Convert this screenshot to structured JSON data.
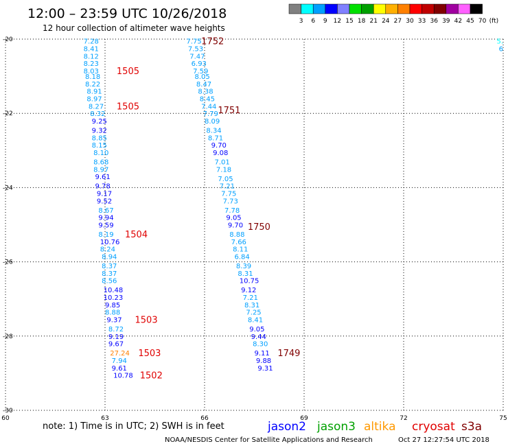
{
  "header": {
    "title": "12:00 – 23:59 UTC 10/26/2018",
    "subtitle": "12 hour collection of altimeter wave heights"
  },
  "colorbar": {
    "labels": [
      "3",
      "6",
      "9",
      "12",
      "15",
      "18",
      "21",
      "24",
      "27",
      "30",
      "33",
      "36",
      "39",
      "42",
      "45",
      "70"
    ],
    "unit": "(ft)",
    "colors": [
      "#808080",
      "#00ffff",
      "#00a0ff",
      "#0000ff",
      "#8080ff",
      "#00e000",
      "#00a000",
      "#ffff00",
      "#ffb000",
      "#ff8000",
      "#ff0000",
      "#c00000",
      "#800000",
      "#a000a0",
      "#ff60ff",
      "#000000"
    ]
  },
  "footer": {
    "note": "note:  1) Time is in UTC;  2) SWH is in feet",
    "credit": "NOAA/NESDIS Center for Satellite Applications and Research",
    "timestamp": "Oct 27 12:27:54 UTC 2018"
  },
  "legend": [
    {
      "name": "jason2",
      "color": "#0000ff"
    },
    {
      "name": "jason3",
      "color": "#00a000"
    },
    {
      "name": "altika",
      "color": "#ff9900"
    },
    {
      "name": "cryosat",
      "color": "#e00000"
    },
    {
      "name": "s3a",
      "color": "#800000"
    }
  ],
  "chart_data": {
    "type": "scatter",
    "xlim": [
      60,
      75
    ],
    "ylim": [
      -30,
      -20
    ],
    "xticks": [
      "60",
      "63",
      "66",
      "69",
      "72",
      "75"
    ],
    "yticks": [
      "-20",
      "-22",
      "-24",
      "-26",
      "-28",
      "-30"
    ],
    "grid": true,
    "swh_color_thresholds": [
      3,
      6,
      9,
      12,
      15,
      18,
      21,
      24,
      27,
      30,
      33,
      36,
      39,
      42,
      45,
      70
    ],
    "series": [
      {
        "track": "left",
        "points": [
          {
            "x": 62.35,
            "y": -20.05,
            "v": "7.28"
          },
          {
            "x": 62.35,
            "y": -20.25,
            "v": "8.41"
          },
          {
            "x": 62.35,
            "y": -20.45,
            "v": "8.12"
          },
          {
            "x": 62.35,
            "y": -20.65,
            "v": "8.23"
          },
          {
            "x": 62.35,
            "y": -20.85,
            "v": "8.03"
          },
          {
            "x": 62.4,
            "y": -21.0,
            "v": "8.18"
          },
          {
            "x": 62.4,
            "y": -21.2,
            "v": "8.22"
          },
          {
            "x": 62.45,
            "y": -21.4,
            "v": "8.91"
          },
          {
            "x": 62.45,
            "y": -21.6,
            "v": "8.97"
          },
          {
            "x": 62.5,
            "y": -21.8,
            "v": "8.27"
          },
          {
            "x": 62.55,
            "y": -22.0,
            "v": "8.32"
          },
          {
            "x": 62.6,
            "y": -22.2,
            "v": "9.25"
          },
          {
            "x": 62.6,
            "y": -22.45,
            "v": "9.32"
          },
          {
            "x": 62.6,
            "y": -22.65,
            "v": "8.85"
          },
          {
            "x": 62.6,
            "y": -22.85,
            "v": "8.15"
          },
          {
            "x": 62.65,
            "y": -23.05,
            "v": "8.10"
          },
          {
            "x": 62.65,
            "y": -23.3,
            "v": "8.68"
          },
          {
            "x": 62.65,
            "y": -23.5,
            "v": "8.97"
          },
          {
            "x": 62.7,
            "y": -23.7,
            "v": "9.61"
          },
          {
            "x": 62.7,
            "y": -23.95,
            "v": "9.78"
          },
          {
            "x": 62.75,
            "y": -24.15,
            "v": "9.17"
          },
          {
            "x": 62.75,
            "y": -24.35,
            "v": "9.52"
          },
          {
            "x": 62.8,
            "y": -24.6,
            "v": "8.67"
          },
          {
            "x": 62.8,
            "y": -24.8,
            "v": "9.94"
          },
          {
            "x": 62.8,
            "y": -25.0,
            "v": "9.59"
          },
          {
            "x": 62.8,
            "y": -25.25,
            "v": "8.19"
          },
          {
            "x": 62.85,
            "y": -25.45,
            "v": "10.76"
          },
          {
            "x": 62.85,
            "y": -25.65,
            "v": "8.24"
          },
          {
            "x": 62.9,
            "y": -25.85,
            "v": "8.94"
          },
          {
            "x": 62.9,
            "y": -26.1,
            "v": "8.37"
          },
          {
            "x": 62.9,
            "y": -26.3,
            "v": "8.37"
          },
          {
            "x": 62.9,
            "y": -26.5,
            "v": "8.56"
          },
          {
            "x": 62.95,
            "y": -26.75,
            "v": "10.48"
          },
          {
            "x": 62.95,
            "y": -26.95,
            "v": "10.23"
          },
          {
            "x": 63.0,
            "y": -27.15,
            "v": "9.85"
          },
          {
            "x": 63.0,
            "y": -27.35,
            "v": "8.88"
          },
          {
            "x": 63.05,
            "y": -27.55,
            "v": "9.37"
          },
          {
            "x": 63.1,
            "y": -27.8,
            "v": "8.72"
          },
          {
            "x": 63.1,
            "y": -28.0,
            "v": "9.19"
          },
          {
            "x": 63.1,
            "y": -28.2,
            "v": "9.67"
          },
          {
            "x": 63.15,
            "y": -28.45,
            "v": "27.24"
          },
          {
            "x": 63.2,
            "y": -28.65,
            "v": "7.94"
          },
          {
            "x": 63.2,
            "y": -28.85,
            "v": "9.61"
          },
          {
            "x": 63.25,
            "y": -29.05,
            "v": "10.78"
          }
        ]
      },
      {
        "track": "right",
        "points": [
          {
            "x": 65.45,
            "y": -20.05,
            "v": "7.75"
          },
          {
            "x": 65.5,
            "y": -20.25,
            "v": "7.53"
          },
          {
            "x": 65.55,
            "y": -20.45,
            "v": "7.47"
          },
          {
            "x": 65.6,
            "y": -20.65,
            "v": "6.93"
          },
          {
            "x": 65.65,
            "y": -20.85,
            "v": "7.59"
          },
          {
            "x": 65.7,
            "y": -21.0,
            "v": "8.05"
          },
          {
            "x": 65.75,
            "y": -21.2,
            "v": "8.47"
          },
          {
            "x": 65.8,
            "y": -21.4,
            "v": "8.38"
          },
          {
            "x": 65.85,
            "y": -21.6,
            "v": "8.45"
          },
          {
            "x": 65.9,
            "y": -21.8,
            "v": "7.44"
          },
          {
            "x": 65.95,
            "y": -22.0,
            "v": "7.79"
          },
          {
            "x": 66.0,
            "y": -22.2,
            "v": "8.09"
          },
          {
            "x": 66.05,
            "y": -22.45,
            "v": "8.34"
          },
          {
            "x": 66.1,
            "y": -22.65,
            "v": "8.71"
          },
          {
            "x": 66.2,
            "y": -22.85,
            "v": "9.70"
          },
          {
            "x": 66.25,
            "y": -23.05,
            "v": "9.08"
          },
          {
            "x": 66.3,
            "y": -23.3,
            "v": "7.01"
          },
          {
            "x": 66.35,
            "y": -23.5,
            "v": "7.18"
          },
          {
            "x": 66.4,
            "y": -23.75,
            "v": "7.05"
          },
          {
            "x": 66.45,
            "y": -23.95,
            "v": "7.21"
          },
          {
            "x": 66.5,
            "y": -24.15,
            "v": "7.75"
          },
          {
            "x": 66.55,
            "y": -24.35,
            "v": "7.73"
          },
          {
            "x": 66.6,
            "y": -24.6,
            "v": "7.78"
          },
          {
            "x": 66.65,
            "y": -24.8,
            "v": "9.05"
          },
          {
            "x": 66.7,
            "y": -25.0,
            "v": "9.70"
          },
          {
            "x": 66.75,
            "y": -25.25,
            "v": "8.88"
          },
          {
            "x": 66.8,
            "y": -25.45,
            "v": "7.66"
          },
          {
            "x": 66.85,
            "y": -25.65,
            "v": "8.11"
          },
          {
            "x": 66.9,
            "y": -25.85,
            "v": "6.84"
          },
          {
            "x": 66.95,
            "y": -26.1,
            "v": "8.39"
          },
          {
            "x": 67.0,
            "y": -26.3,
            "v": "8.31"
          },
          {
            "x": 67.05,
            "y": -26.5,
            "v": "10.75"
          },
          {
            "x": 67.1,
            "y": -26.75,
            "v": "9.12"
          },
          {
            "x": 67.15,
            "y": -26.95,
            "v": "7.21"
          },
          {
            "x": 67.2,
            "y": -27.15,
            "v": "8.31"
          },
          {
            "x": 67.25,
            "y": -27.35,
            "v": "7.25"
          },
          {
            "x": 67.3,
            "y": -27.55,
            "v": "8.41"
          },
          {
            "x": 67.35,
            "y": -27.8,
            "v": "9.05"
          },
          {
            "x": 67.4,
            "y": -28.0,
            "v": "9.44"
          },
          {
            "x": 67.45,
            "y": -28.2,
            "v": "8.30"
          },
          {
            "x": 67.5,
            "y": -28.45,
            "v": "9.11"
          },
          {
            "x": 67.55,
            "y": -28.65,
            "v": "9.88"
          },
          {
            "x": 67.6,
            "y": -28.85,
            "v": "9.31"
          }
        ]
      },
      {
        "track": "edge",
        "points": [
          {
            "x": 75.0,
            "y": -20.05,
            "v": "5."
          },
          {
            "x": 75.0,
            "y": -20.25,
            "v": "6"
          }
        ]
      }
    ],
    "time_labels": [
      {
        "x": 63.35,
        "y": -20.85,
        "text": "1505",
        "sat": "cryosat"
      },
      {
        "x": 63.35,
        "y": -21.8,
        "text": "1505",
        "sat": "cryosat"
      },
      {
        "x": 63.6,
        "y": -25.25,
        "text": "1504",
        "sat": "cryosat"
      },
      {
        "x": 63.9,
        "y": -27.55,
        "text": "1503",
        "sat": "cryosat"
      },
      {
        "x": 64.0,
        "y": -28.45,
        "text": "1503",
        "sat": "cryosat"
      },
      {
        "x": 64.05,
        "y": -29.05,
        "text": "1502",
        "sat": "cryosat"
      },
      {
        "x": 65.9,
        "y": -20.05,
        "text": "1752",
        "sat": "s3a"
      },
      {
        "x": 66.4,
        "y": -21.9,
        "text": "1751",
        "sat": "s3a"
      },
      {
        "x": 67.3,
        "y": -25.05,
        "text": "1750",
        "sat": "s3a"
      },
      {
        "x": 68.2,
        "y": -28.45,
        "text": "1749",
        "sat": "s3a"
      }
    ]
  }
}
